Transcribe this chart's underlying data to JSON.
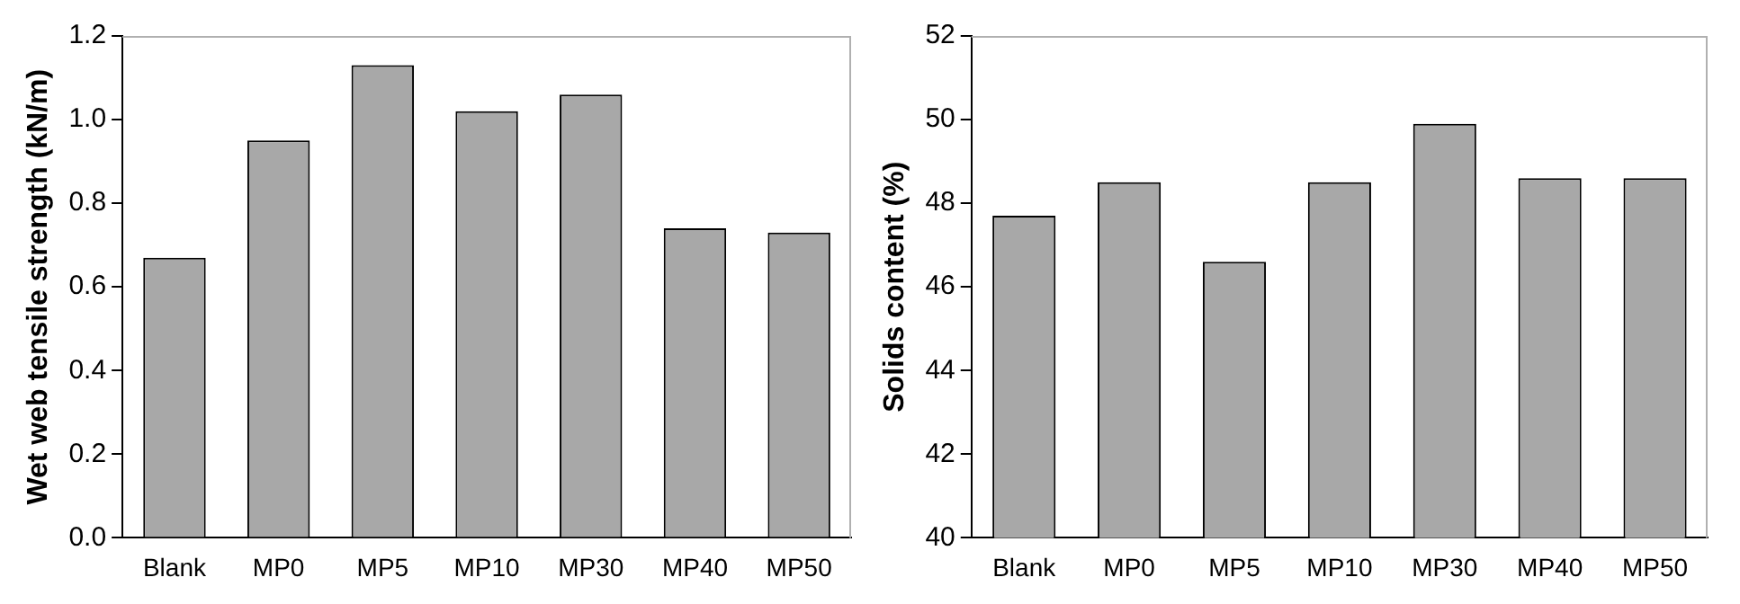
{
  "chart_data": [
    {
      "type": "bar",
      "ylabel": "Wet web tensile strength (kN/m)",
      "categories": [
        "Blank",
        "MP0",
        "MP5",
        "MP10",
        "MP30",
        "MP40",
        "MP50"
      ],
      "values": [
        0.67,
        0.95,
        1.13,
        1.02,
        1.06,
        0.74,
        0.73
      ],
      "color": "#a8a8a8",
      "ylim": [
        0,
        1.2
      ],
      "yticks": [
        {
          "value": 0,
          "label": "0.0"
        },
        {
          "value": 0.2,
          "label": "0.2"
        },
        {
          "value": 0.4,
          "label": "0.4"
        },
        {
          "value": 0.6,
          "label": "0.6"
        },
        {
          "value": 0.8,
          "label": "0.8"
        },
        {
          "value": 1,
          "label": "1.0"
        },
        {
          "value": 1.2,
          "label": "1.2"
        }
      ],
      "grid": false,
      "legend": false
    },
    {
      "type": "bar",
      "ylabel": "Solids content (%)",
      "categories": [
        "Blank",
        "MP0",
        "MP5",
        "MP10",
        "MP30",
        "MP40",
        "MP50"
      ],
      "values": [
        47.7,
        48.5,
        46.6,
        48.5,
        49.9,
        48.6,
        48.6
      ],
      "color": "#a8a8a8",
      "ylim": [
        40,
        52
      ],
      "yticks": [
        40,
        42,
        44,
        46,
        48,
        50,
        52
      ],
      "grid": false,
      "legend": false
    }
  ]
}
